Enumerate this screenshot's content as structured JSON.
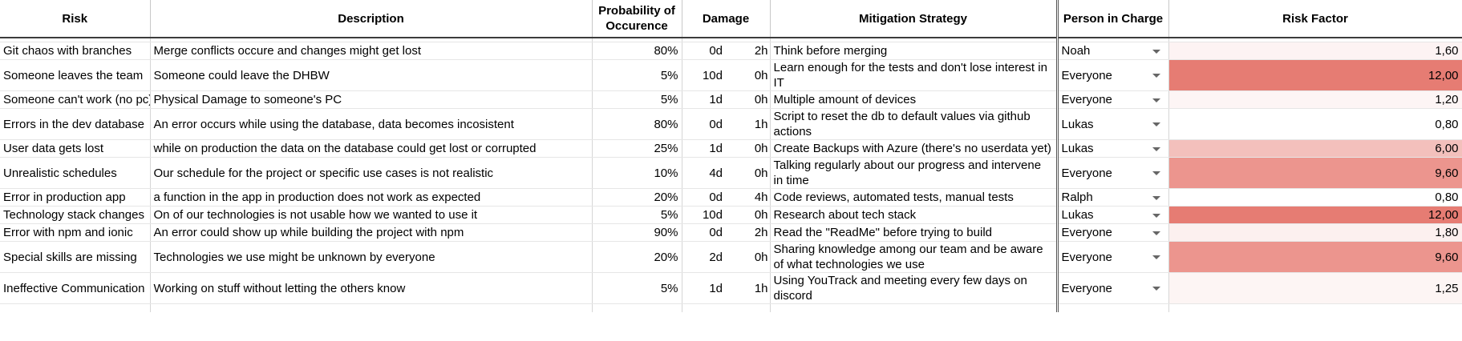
{
  "headers": {
    "risk": "Risk",
    "description": "Description",
    "probability": "Probability of Occurence",
    "damage": "Damage",
    "mitigation": "Mitigation Strategy",
    "person": "Person in Charge",
    "risk_factor": "Risk Factor"
  },
  "rows": [
    {
      "risk": "Git chaos with branches",
      "description": "Merge conflicts occure and changes might get lost",
      "probability": "80%",
      "damage_days": "0d",
      "damage_hours": "2h",
      "mitigation": "Think before merging",
      "person": "Noah",
      "risk_factor": "1,60",
      "factor_color": "#fdf3f3"
    },
    {
      "risk": "Someone leaves the team",
      "description": "Someone could leave the DHBW",
      "probability": "5%",
      "damage_days": "10d",
      "damage_hours": "0h",
      "mitigation": "Learn enough for the tests and don't lose interest in IT",
      "person": "Everyone",
      "risk_factor": "12,00",
      "factor_color": "#e67c73"
    },
    {
      "risk": "Someone can't work (no pc)",
      "description": "Physical Damage to someone's PC",
      "probability": "5%",
      "damage_days": "1d",
      "damage_hours": "0h",
      "mitigation": "Multiple amount of devices",
      "person": "Everyone",
      "risk_factor": "1,20",
      "factor_color": "#fdf5f5"
    },
    {
      "risk": "Errors in the dev database",
      "description": "An error occurs while using the database, data becomes incosistent",
      "probability": "80%",
      "damage_days": "0d",
      "damage_hours": "1h",
      "mitigation": "Script to reset the db to default values via github actions",
      "person": "Lukas",
      "risk_factor": "0,80",
      "factor_color": "#ffffff"
    },
    {
      "risk": "User data gets lost",
      "description": "while on production the data on the database could get lost or corrupted",
      "probability": "25%",
      "damage_days": "1d",
      "damage_hours": "0h",
      "mitigation": "Create Backups with Azure (there's no userdata yet)",
      "person": "Lukas",
      "risk_factor": "6,00",
      "factor_color": "#f3c0bc"
    },
    {
      "risk": "Unrealistic schedules",
      "description": "Our schedule for the project or specific use cases is not realistic",
      "probability": "10%",
      "damage_days": "4d",
      "damage_hours": "0h",
      "mitigation": "Talking regularly about our progress and intervene in time",
      "person": "Everyone",
      "risk_factor": "9,60",
      "factor_color": "#ec958e"
    },
    {
      "risk": "Error in production app",
      "description": "a function  in the app in production does not work as expected",
      "probability": "20%",
      "damage_days": "0d",
      "damage_hours": "4h",
      "mitigation": "Code reviews, automated tests, manual tests",
      "person": "Ralph",
      "risk_factor": "0,80",
      "factor_color": "#ffffff"
    },
    {
      "risk": "Technology stack changes",
      "description": "On of our technologies is not usable how we wanted to use it",
      "probability": "5%",
      "damage_days": "10d",
      "damage_hours": "0h",
      "mitigation": "Research about tech stack",
      "person": "Lukas",
      "risk_factor": "12,00",
      "factor_color": "#e67c73"
    },
    {
      "risk": "Error with npm and ionic",
      "description": "An error could show up while building the project with npm",
      "probability": "90%",
      "damage_days": "0d",
      "damage_hours": "2h",
      "mitigation": "Read the \"ReadMe\" before trying to build",
      "person": "Everyone",
      "risk_factor": "1,80",
      "factor_color": "#fcf0ef"
    },
    {
      "risk": "Special skills are missing",
      "description": "Technologies we use might be unknown by everyone",
      "probability": "20%",
      "damage_days": "2d",
      "damage_hours": "0h",
      "mitigation": "Sharing knowledge among our team and be aware of what technologies we use",
      "person": "Everyone",
      "risk_factor": "9,60",
      "factor_color": "#ec958e"
    },
    {
      "risk": "Ineffective Communication",
      "description": "Working on stuff without letting the others know",
      "probability": "5%",
      "damage_days": "1d",
      "damage_hours": "1h",
      "mitigation": "Using YouTrack and meeting every few days on discord",
      "person": "Everyone",
      "risk_factor": "1,25",
      "factor_color": "#fdf5f4"
    }
  ]
}
